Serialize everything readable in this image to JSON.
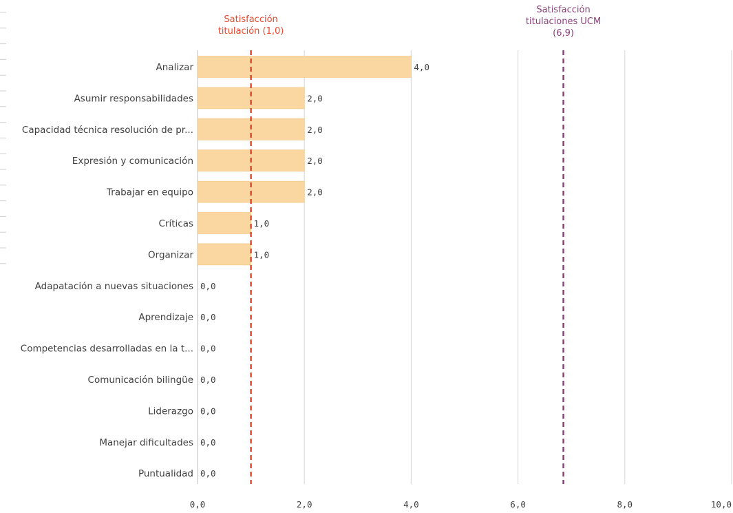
{
  "chart_data": {
    "type": "bar",
    "orientation": "horizontal",
    "categories": [
      "Analizar",
      "Asumir responsabilidades",
      "Capacidad técnica resolución de pr...",
      "Expresión y comunicación",
      "Trabajar en equipo",
      "Críticas",
      "Organizar",
      "Adapatación a nuevas situaciones",
      "Aprendizaje",
      "Competencias desarrolladas en la t...",
      "Comunicación bilingüe",
      "Liderazgo",
      "Manejar dificultades",
      "Puntualidad"
    ],
    "values": [
      4,
      2,
      2,
      2,
      2,
      1,
      1,
      0,
      0,
      0,
      0,
      0,
      0,
      0
    ],
    "value_labels": [
      "4,0",
      "2,0",
      "2,0",
      "2,0",
      "2,0",
      "1,0",
      "1,0",
      "0,0",
      "0,0",
      "0,0",
      "0,0",
      "0,0",
      "0,0",
      "0,0"
    ],
    "xlim": [
      0,
      10
    ],
    "x_ticks": [
      0,
      2,
      4,
      6,
      8,
      10
    ],
    "x_tick_labels": [
      "0,0",
      "2,0",
      "4,0",
      "6,0",
      "8,0",
      "10,0"
    ],
    "grid": true,
    "reference_lines": [
      {
        "value": 1.0,
        "label_lines": [
          "Satisfacción",
          "titulación (1,0)"
        ],
        "color": "#e8472b"
      },
      {
        "value": 6.85,
        "label_lines": [
          "Satisfacción",
          "titulaciones UCM",
          "(6,9)"
        ],
        "color": "#8c3f7a"
      }
    ],
    "colors": {
      "bar": "#fad7a0",
      "bar_border": "#f0c27e",
      "grid": "#d4d4d4",
      "text": "#404040"
    }
  }
}
